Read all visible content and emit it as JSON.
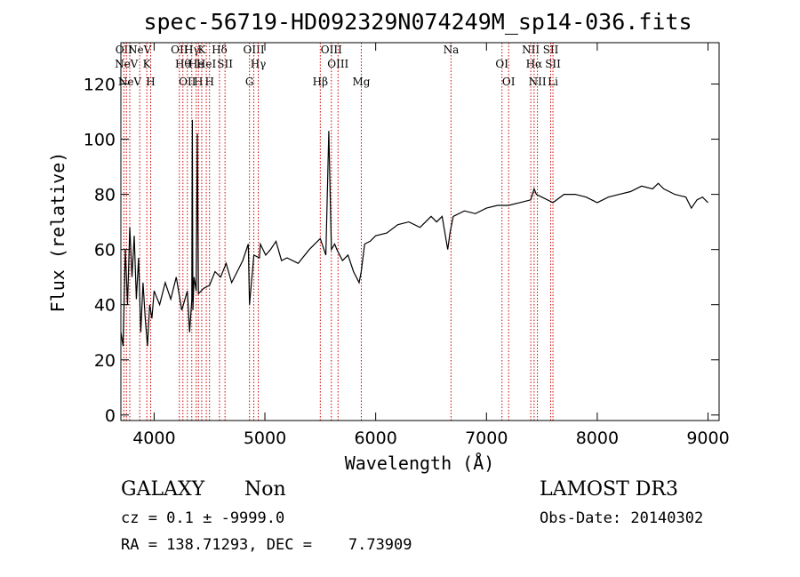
{
  "chart_data": {
    "type": "line",
    "title": "spec-56719-HD092329N074249M_sp14-036.fits",
    "xlabel": "Wavelength (Å)",
    "ylabel": "Flux (relative)",
    "xlim": [
      3700,
      9100
    ],
    "ylim": [
      -2,
      135
    ],
    "xticks": [
      4000,
      5000,
      6000,
      7000,
      8000,
      9000
    ],
    "yticks": [
      0,
      20,
      40,
      60,
      80,
      100,
      120
    ],
    "grid": false,
    "line_color": "#000000",
    "marker_color": "#cc0000",
    "series": [
      {
        "x": [
          3700,
          3720,
          3740,
          3760,
          3780,
          3800,
          3820,
          3840,
          3860,
          3880,
          3900,
          3920,
          3940,
          3960,
          3980,
          4000,
          4050,
          4100,
          4150,
          4200,
          4250,
          4300,
          4320,
          4340,
          4345,
          4350,
          4360,
          4380,
          4390,
          4400,
          4450,
          4500,
          4550,
          4600,
          4650,
          4700,
          4750,
          4800,
          4850,
          4861,
          4900,
          4950,
          4959,
          5007,
          5050,
          5100,
          5150,
          5200,
          5300,
          5400,
          5500,
          5550,
          5577,
          5600,
          5630,
          5650,
          5700,
          5750,
          5800,
          5850,
          5870,
          5900,
          5950,
          6000,
          6100,
          6200,
          6300,
          6400,
          6500,
          6550,
          6600,
          6650,
          6670,
          6700,
          6800,
          6900,
          7000,
          7100,
          7200,
          7300,
          7400,
          7430,
          7450,
          7500,
          7600,
          7700,
          7800,
          7900,
          8000,
          8100,
          8200,
          8300,
          8400,
          8500,
          8550,
          8600,
          8700,
          8800,
          8850,
          8900,
          8950,
          9000
        ],
        "y": [
          30,
          25,
          60,
          40,
          68,
          50,
          65,
          42,
          57,
          30,
          48,
          35,
          25,
          40,
          35,
          45,
          40,
          48,
          42,
          50,
          38,
          45,
          30,
          42,
          107,
          38,
          50,
          45,
          102,
          44,
          46,
          47,
          52,
          50,
          55,
          48,
          52,
          56,
          62,
          40,
          58,
          57,
          62,
          58,
          60,
          63,
          56,
          57,
          55,
          60,
          64,
          58,
          103,
          60,
          62,
          60,
          56,
          58,
          52,
          48,
          52,
          62,
          63,
          65,
          66,
          69,
          70,
          68,
          72,
          70,
          72,
          60,
          66,
          72,
          74,
          73,
          75,
          76,
          76,
          77,
          78,
          82,
          80,
          79,
          77,
          80,
          80,
          79,
          77,
          79,
          80,
          81,
          83,
          82,
          84,
          82,
          80,
          79,
          75,
          78,
          79,
          77
        ]
      }
    ],
    "markers": [
      {
        "x": 3727,
        "labels": [
          "OII"
        ]
      },
      {
        "x": 3750,
        "labels": [
          "NeV"
        ]
      },
      {
        "x": 3780,
        "labels": [
          "NeV"
        ]
      },
      {
        "x": 3870,
        "labels": [
          "NeV"
        ]
      },
      {
        "x": 3934,
        "labels": [
          "K"
        ]
      },
      {
        "x": 3969,
        "labels": [
          "H"
        ]
      },
      {
        "x": 4228,
        "labels": [
          "OII"
        ]
      },
      {
        "x": 4260,
        "labels": [
          "Hθ"
        ]
      },
      {
        "x": 4300,
        "labels": [
          "OII"
        ]
      },
      {
        "x": 4340,
        "labels": [
          "Hγ"
        ]
      },
      {
        "x": 4380,
        "labels": [
          "He"
        ]
      },
      {
        "x": 4400,
        "labels": [
          "H"
        ]
      },
      {
        "x": 4430,
        "labels": [
          "K"
        ]
      },
      {
        "x": 4471,
        "labels": [
          "HeI"
        ]
      },
      {
        "x": 4500,
        "labels": [
          "H"
        ]
      },
      {
        "x": 4590,
        "labels": [
          "Hδ"
        ]
      },
      {
        "x": 4640,
        "labels": [
          "SII"
        ]
      },
      {
        "x": 4861,
        "labels": [
          "G"
        ]
      },
      {
        "x": 4900,
        "labels": [
          "OIII"
        ]
      },
      {
        "x": 4940,
        "labels": [
          "Hγ"
        ]
      },
      {
        "x": 5500,
        "labels": [
          "Hβ"
        ]
      },
      {
        "x": 5600,
        "labels": [
          "OIII"
        ]
      },
      {
        "x": 5660,
        "labels": [
          "OIII"
        ]
      },
      {
        "x": 5870,
        "labels": [
          "Mg"
        ]
      },
      {
        "x": 6680,
        "labels": [
          "Na"
        ]
      },
      {
        "x": 7140,
        "labels": [
          "OI"
        ]
      },
      {
        "x": 7200,
        "labels": [
          "OI"
        ]
      },
      {
        "x": 7400,
        "labels": [
          "NII"
        ]
      },
      {
        "x": 7430,
        "labels": [
          "Hα"
        ]
      },
      {
        "x": 7460,
        "labels": [
          "NII"
        ]
      },
      {
        "x": 7580,
        "labels": [
          "SII"
        ]
      },
      {
        "x": 7600,
        "labels": [
          "SII",
          "Li"
        ]
      }
    ]
  },
  "info": {
    "class_label": "GALAXY",
    "subclass_label": "Non",
    "survey_label": "LAMOST DR3",
    "cz_line": "cz = 0.1 ± -9999.0",
    "obsdate_line": "Obs-Date: 20140302",
    "coords_line": "RA = 138.71293, DEC =    7.73909"
  }
}
